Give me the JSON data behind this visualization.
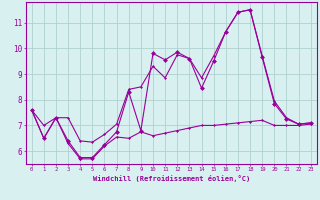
{
  "xlabel": "Windchill (Refroidissement éolien,°C)",
  "x": [
    0,
    1,
    2,
    3,
    4,
    5,
    6,
    7,
    8,
    9,
    10,
    11,
    12,
    13,
    14,
    15,
    16,
    17,
    18,
    19,
    20,
    21,
    22,
    23
  ],
  "line_jagged": [
    7.6,
    6.5,
    7.3,
    6.4,
    5.75,
    5.75,
    6.25,
    6.75,
    8.3,
    6.8,
    9.8,
    9.55,
    9.85,
    9.6,
    8.45,
    9.5,
    10.65,
    11.4,
    11.5,
    9.65,
    7.85,
    7.25,
    7.05,
    7.1
  ],
  "line_upper": [
    7.6,
    7.0,
    7.3,
    7.3,
    6.4,
    6.35,
    6.65,
    7.05,
    8.4,
    8.5,
    9.3,
    8.85,
    9.75,
    9.6,
    8.85,
    9.7,
    10.65,
    11.4,
    11.5,
    9.7,
    7.95,
    7.3,
    7.05,
    7.1
  ],
  "line_lower": [
    7.6,
    6.5,
    7.3,
    6.3,
    5.7,
    5.7,
    6.2,
    6.55,
    6.5,
    6.75,
    6.6,
    6.7,
    6.8,
    6.9,
    7.0,
    7.0,
    7.05,
    7.1,
    7.15,
    7.2,
    7.0,
    7.0,
    7.0,
    7.05
  ],
  "line_color": "#990099",
  "bg_color": "#d8f0f0",
  "grid_color": "#b0d0d0",
  "ylim": [
    5.5,
    11.8
  ],
  "xlim": [
    -0.5,
    23.5
  ],
  "yticks": [
    6,
    7,
    8,
    9,
    10,
    11
  ],
  "xticks": [
    0,
    1,
    2,
    3,
    4,
    5,
    6,
    7,
    8,
    9,
    10,
    11,
    12,
    13,
    14,
    15,
    16,
    17,
    18,
    19,
    20,
    21,
    22,
    23
  ]
}
